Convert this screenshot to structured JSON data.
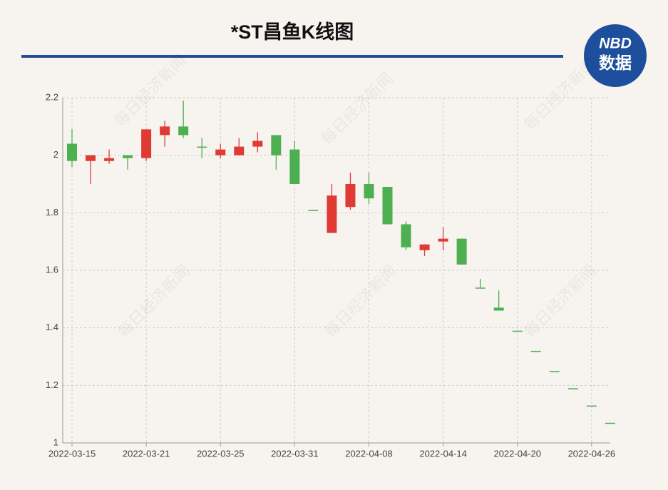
{
  "chart_data": {
    "type": "candlestick",
    "title": "*ST昌鱼K线图",
    "logo": [
      "NBD",
      "数据"
    ],
    "watermark": "每日经济新闻",
    "x": [
      "2022-03-15",
      null,
      null,
      null,
      "2022-03-21",
      null,
      null,
      null,
      "2022-03-25",
      null,
      null,
      null,
      "2022-03-31",
      null,
      null,
      null,
      "2022-04-08",
      null,
      null,
      null,
      "2022-04-14",
      null,
      null,
      null,
      "2022-04-20",
      null,
      null,
      null,
      "2022-04-26",
      null
    ],
    "open": [
      2.04,
      1.98,
      1.98,
      2.0,
      1.99,
      2.07,
      2.1,
      2.03,
      2.0,
      2.0,
      2.03,
      2.07,
      2.02,
      1.81,
      1.73,
      1.82,
      1.9,
      1.89,
      1.76,
      1.67,
      1.7,
      1.71,
      1.54,
      1.47,
      1.39,
      1.32,
      1.25,
      1.19,
      1.13,
      1.07
    ],
    "high": [
      2.09,
      2.0,
      2.02,
      2.0,
      2.09,
      2.12,
      2.19,
      2.06,
      2.04,
      2.06,
      2.08,
      2.07,
      2.05,
      1.81,
      1.9,
      1.94,
      1.94,
      1.89,
      1.77,
      1.69,
      1.75,
      1.71,
      1.57,
      1.53,
      1.39,
      1.32,
      1.25,
      1.19,
      1.13,
      1.07
    ],
    "low": [
      1.96,
      1.9,
      1.97,
      1.95,
      1.98,
      2.03,
      2.06,
      1.99,
      1.99,
      2.0,
      2.01,
      1.95,
      1.9,
      1.81,
      1.73,
      1.81,
      1.83,
      1.76,
      1.67,
      1.65,
      1.67,
      1.62,
      1.54,
      1.46,
      1.39,
      1.32,
      1.25,
      1.19,
      1.13,
      1.07
    ],
    "close": [
      1.98,
      2.0,
      1.99,
      1.99,
      2.09,
      2.1,
      2.07,
      2.03,
      2.02,
      2.03,
      2.05,
      2.0,
      1.9,
      1.81,
      1.86,
      1.9,
      1.85,
      1.76,
      1.68,
      1.69,
      1.71,
      1.62,
      1.54,
      1.46,
      1.39,
      1.32,
      1.25,
      1.19,
      1.13,
      1.07
    ],
    "up_color": "#e03a35",
    "down_color": "#4caf50",
    "ylim": [
      1,
      2.2
    ],
    "yticks": [
      1,
      1.2,
      1.4,
      1.6,
      1.8,
      2,
      2.2
    ],
    "grid": true
  }
}
